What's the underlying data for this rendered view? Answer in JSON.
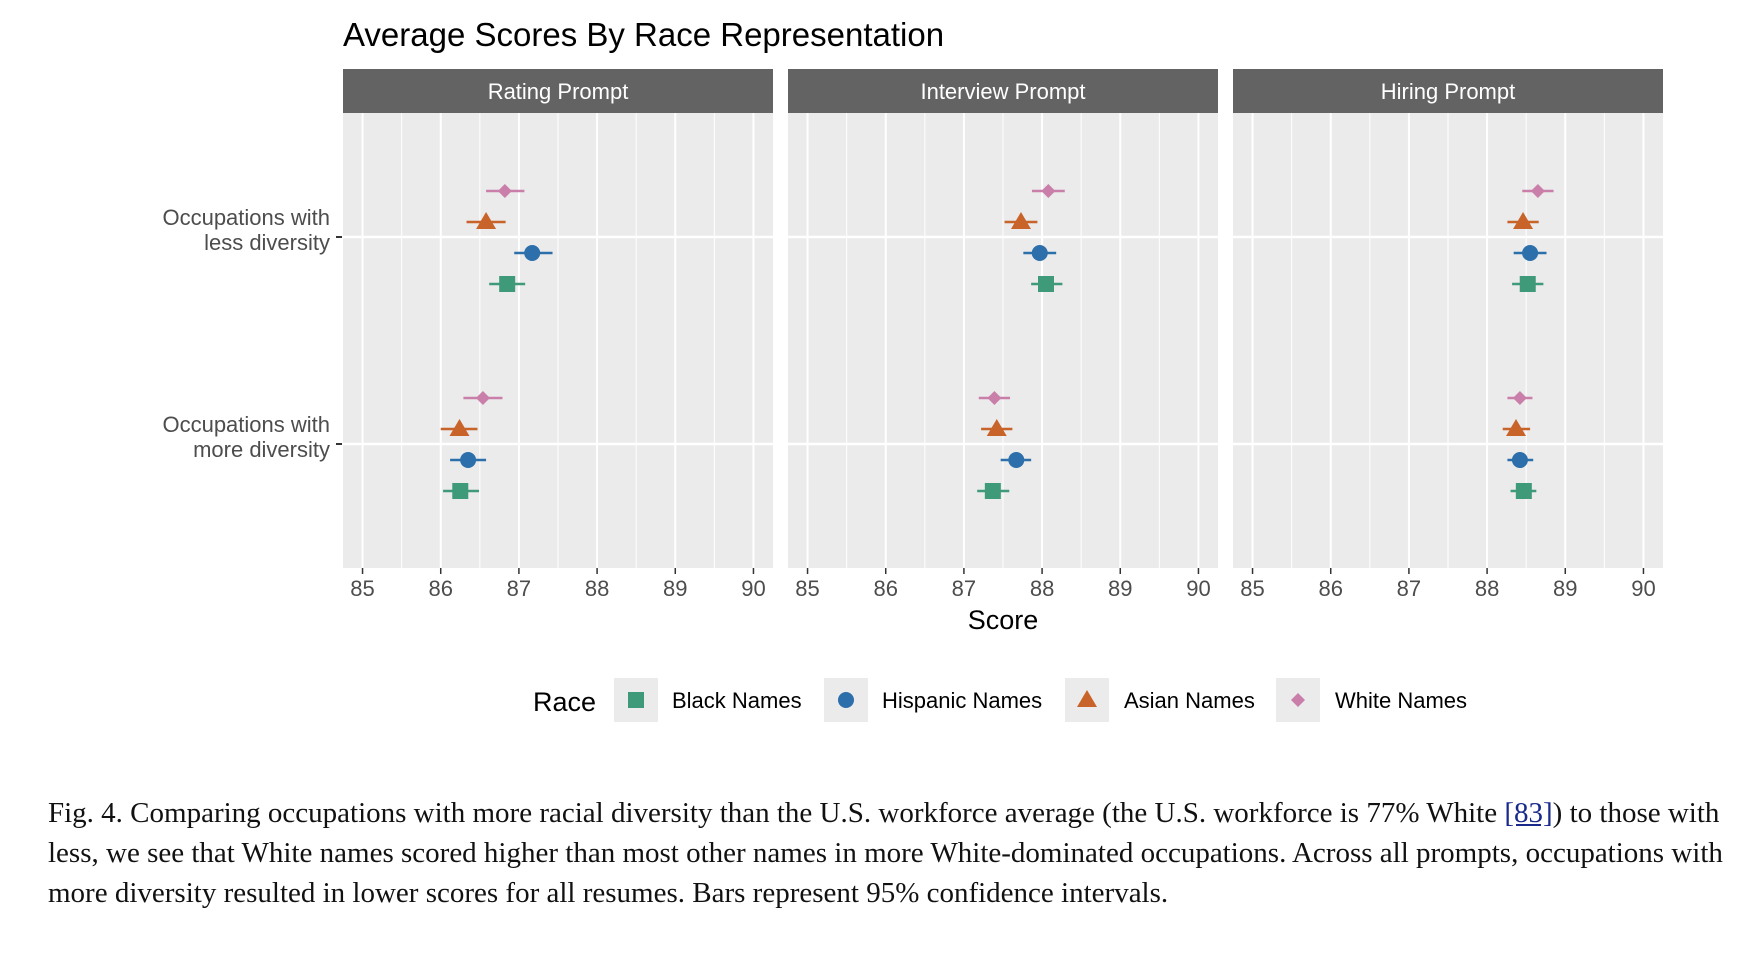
{
  "chart_data": {
    "type": "scatter",
    "title": "Average Scores By Race Representation",
    "xlabel": "Score",
    "ylabel": "",
    "xlim": [
      84.75,
      90.25
    ],
    "xticks": [
      85,
      86,
      87,
      88,
      89,
      90
    ],
    "grid": true,
    "legend_title": "Race",
    "legend_position": "bottom",
    "facets": [
      "Rating Prompt",
      "Interview Prompt",
      "Hiring Prompt"
    ],
    "categories": [
      [
        "Occupations with",
        "less diversity"
      ],
      [
        "Occupations with",
        "more diversity"
      ]
    ],
    "series": [
      {
        "name": "Black Names",
        "color": "#3f9a79",
        "marker": "square",
        "points": [
          {
            "facet": 0,
            "category": 0,
            "value": 86.85,
            "ci": [
              86.62,
              87.08
            ]
          },
          {
            "facet": 0,
            "category": 1,
            "value": 86.25,
            "ci": [
              86.03,
              86.49
            ]
          },
          {
            "facet": 1,
            "category": 0,
            "value": 88.05,
            "ci": [
              87.86,
              88.26
            ]
          },
          {
            "facet": 1,
            "category": 1,
            "value": 87.37,
            "ci": [
              87.17,
              87.58
            ]
          },
          {
            "facet": 2,
            "category": 0,
            "value": 88.52,
            "ci": [
              88.32,
              88.72
            ]
          },
          {
            "facet": 2,
            "category": 1,
            "value": 88.47,
            "ci": [
              88.3,
              88.63
            ]
          }
        ]
      },
      {
        "name": "Hispanic Names",
        "color": "#2c6fab",
        "marker": "circle",
        "points": [
          {
            "facet": 0,
            "category": 0,
            "value": 87.17,
            "ci": [
              86.94,
              87.43
            ]
          },
          {
            "facet": 0,
            "category": 1,
            "value": 86.35,
            "ci": [
              86.12,
              86.58
            ]
          },
          {
            "facet": 1,
            "category": 0,
            "value": 87.97,
            "ci": [
              87.76,
              88.18
            ]
          },
          {
            "facet": 1,
            "category": 1,
            "value": 87.67,
            "ci": [
              87.47,
              87.86
            ]
          },
          {
            "facet": 2,
            "category": 0,
            "value": 88.55,
            "ci": [
              88.34,
              88.76
            ]
          },
          {
            "facet": 2,
            "category": 1,
            "value": 88.42,
            "ci": [
              88.26,
              88.59
            ]
          }
        ]
      },
      {
        "name": "Asian Names",
        "color": "#c8632a",
        "marker": "triangle",
        "points": [
          {
            "facet": 0,
            "category": 0,
            "value": 86.58,
            "ci": [
              86.33,
              86.83
            ]
          },
          {
            "facet": 0,
            "category": 1,
            "value": 86.24,
            "ci": [
              86.0,
              86.47
            ]
          },
          {
            "facet": 1,
            "category": 0,
            "value": 87.73,
            "ci": [
              87.52,
              87.94
            ]
          },
          {
            "facet": 1,
            "category": 1,
            "value": 87.42,
            "ci": [
              87.22,
              87.62
            ]
          },
          {
            "facet": 2,
            "category": 0,
            "value": 88.46,
            "ci": [
              88.26,
              88.66
            ]
          },
          {
            "facet": 2,
            "category": 1,
            "value": 88.37,
            "ci": [
              88.2,
              88.55
            ]
          }
        ]
      },
      {
        "name": "White Names",
        "color": "#c97fa9",
        "marker": "diamond",
        "points": [
          {
            "facet": 0,
            "category": 0,
            "value": 86.82,
            "ci": [
              86.58,
              87.07
            ]
          },
          {
            "facet": 0,
            "category": 1,
            "value": 86.54,
            "ci": [
              86.29,
              86.79
            ]
          },
          {
            "facet": 1,
            "category": 0,
            "value": 88.08,
            "ci": [
              87.87,
              88.29
            ]
          },
          {
            "facet": 1,
            "category": 1,
            "value": 87.39,
            "ci": [
              87.19,
              87.59
            ]
          },
          {
            "facet": 2,
            "category": 0,
            "value": 88.65,
            "ci": [
              88.45,
              88.85
            ]
          },
          {
            "facet": 2,
            "category": 1,
            "value": 88.42,
            "ci": [
              88.26,
              88.58
            ]
          }
        ]
      }
    ]
  },
  "caption": {
    "prefix": "Fig. 4.  Comparing occupations with more racial diversity than the U.S. workforce average (the U.S. workforce is 77% White ",
    "ref": "[83]",
    "suffix": ") to those with less, we see that White names scored higher than most other names in more White-dominated occupations. Across all prompts, occupations with more diversity resulted in lower scores for all resumes. Bars represent 95% confidence intervals."
  }
}
